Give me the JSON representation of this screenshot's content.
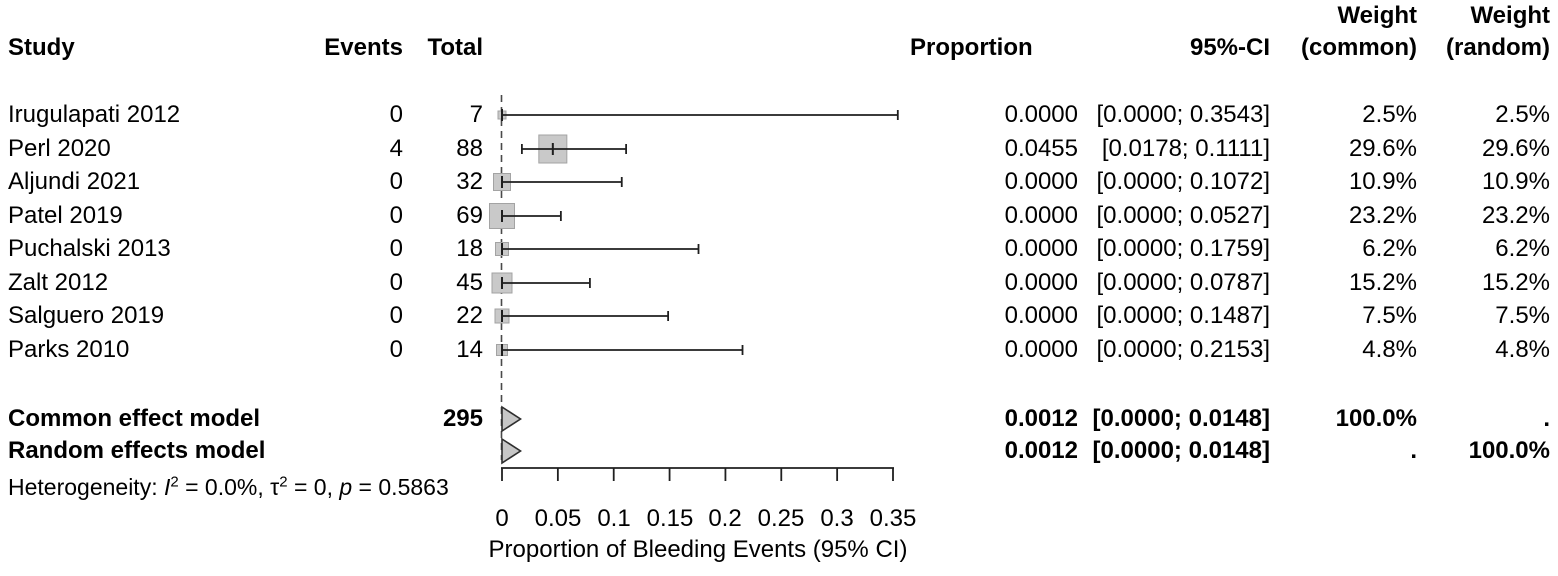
{
  "header": {
    "study": "Study",
    "events": "Events",
    "total": "Total",
    "proportion": "Proportion",
    "ci": "95%-CI",
    "weight": "Weight",
    "weight_common_sub": "(common)",
    "weight_random_sub": "(random)"
  },
  "rows": [
    {
      "study": "Irugulapati 2012",
      "events": "0",
      "total": "7",
      "proportion": "0.0000",
      "ci": "[0.0000; 0.3543]",
      "weight_common": "2.5%",
      "weight_random": "2.5%"
    },
    {
      "study": "Perl 2020",
      "events": "4",
      "total": "88",
      "proportion": "0.0455",
      "ci": "[0.0178; 0.1111]",
      "weight_common": "29.6%",
      "weight_random": "29.6%"
    },
    {
      "study": "Aljundi 2021",
      "events": "0",
      "total": "32",
      "proportion": "0.0000",
      "ci": "[0.0000; 0.1072]",
      "weight_common": "10.9%",
      "weight_random": "10.9%"
    },
    {
      "study": "Patel 2019",
      "events": "0",
      "total": "69",
      "proportion": "0.0000",
      "ci": "[0.0000; 0.0527]",
      "weight_common": "23.2%",
      "weight_random": "23.2%"
    },
    {
      "study": "Puchalski 2013",
      "events": "0",
      "total": "18",
      "proportion": "0.0000",
      "ci": "[0.0000; 0.1759]",
      "weight_common": "6.2%",
      "weight_random": "6.2%"
    },
    {
      "study": "Zalt 2012",
      "events": "0",
      "total": "45",
      "proportion": "0.0000",
      "ci": "[0.0000; 0.0787]",
      "weight_common": "15.2%",
      "weight_random": "15.2%"
    },
    {
      "study": "Salguero 2019",
      "events": "0",
      "total": "22",
      "proportion": "0.0000",
      "ci": "[0.0000; 0.1487]",
      "weight_common": "7.5%",
      "weight_random": "7.5%"
    },
    {
      "study": "Parks 2010",
      "events": "0",
      "total": "14",
      "proportion": "0.0000",
      "ci": "[0.0000; 0.2153]",
      "weight_common": "4.8%",
      "weight_random": "4.8%"
    }
  ],
  "pooled_rows": [
    {
      "label": "Common effect model",
      "total": "295",
      "proportion": "0.0012",
      "ci": "[0.0000; 0.0148]",
      "weight_common": "100.0%",
      "weight_random": "."
    },
    {
      "label": "Random effects model",
      "total": "",
      "proportion": "0.0012",
      "ci": "[0.0000; 0.0148]",
      "weight_common": ".",
      "weight_random": "100.0%"
    }
  ],
  "heterogeneity": {
    "prefix": "Heterogeneity: ",
    "i": "I",
    "sup2": "2",
    "seg1": " = 0.0%, ",
    "tau": "τ",
    "seg2": " = 0, ",
    "p": "p",
    "seg3": " = 0.5863"
  },
  "axis": {
    "ticks": [
      "0",
      "0.05",
      "0.1",
      "0.15",
      "0.2",
      "0.25",
      "0.3",
      "0.35"
    ],
    "label": "Proportion of Bleeding Events (95% CI)"
  },
  "chart_data": {
    "type": "scatter",
    "subtype": "forest_plot",
    "title": "",
    "xlabel": "Proportion of Bleeding Events (95% CI)",
    "xlim": [
      0,
      0.35
    ],
    "x_ticks": [
      0,
      0.05,
      0.1,
      0.15,
      0.2,
      0.25,
      0.3,
      0.35
    ],
    "grid": false,
    "studies": [
      {
        "name": "Irugulapati 2012",
        "events": 0,
        "total": 7,
        "proportion": 0.0,
        "ci_lower": 0.0,
        "ci_upper": 0.3543,
        "weight_common_pct": 2.5,
        "weight_random_pct": 2.5
      },
      {
        "name": "Perl 2020",
        "events": 4,
        "total": 88,
        "proportion": 0.0455,
        "ci_lower": 0.0178,
        "ci_upper": 0.1111,
        "weight_common_pct": 29.6,
        "weight_random_pct": 29.6
      },
      {
        "name": "Aljundi 2021",
        "events": 0,
        "total": 32,
        "proportion": 0.0,
        "ci_lower": 0.0,
        "ci_upper": 0.1072,
        "weight_common_pct": 10.9,
        "weight_random_pct": 10.9
      },
      {
        "name": "Patel 2019",
        "events": 0,
        "total": 69,
        "proportion": 0.0,
        "ci_lower": 0.0,
        "ci_upper": 0.0527,
        "weight_common_pct": 23.2,
        "weight_random_pct": 23.2
      },
      {
        "name": "Puchalski 2013",
        "events": 0,
        "total": 18,
        "proportion": 0.0,
        "ci_lower": 0.0,
        "ci_upper": 0.1759,
        "weight_common_pct": 6.2,
        "weight_random_pct": 6.2
      },
      {
        "name": "Zalt 2012",
        "events": 0,
        "total": 45,
        "proportion": 0.0,
        "ci_lower": 0.0,
        "ci_upper": 0.0787,
        "weight_common_pct": 15.2,
        "weight_random_pct": 15.2
      },
      {
        "name": "Salguero 2019",
        "events": 0,
        "total": 22,
        "proportion": 0.0,
        "ci_lower": 0.0,
        "ci_upper": 0.1487,
        "weight_common_pct": 7.5,
        "weight_random_pct": 7.5
      },
      {
        "name": "Parks 2010",
        "events": 0,
        "total": 14,
        "proportion": 0.0,
        "ci_lower": 0.0,
        "ci_upper": 0.2153,
        "weight_common_pct": 4.8,
        "weight_random_pct": 4.8
      }
    ],
    "pooled": [
      {
        "model": "Common effect model",
        "total": 295,
        "estimate": 0.0012,
        "ci": [
          0.0,
          0.0148
        ],
        "weight_common_pct": 100.0
      },
      {
        "model": "Random effects model",
        "estimate": 0.0012,
        "ci": [
          0.0,
          0.0148
        ],
        "weight_random_pct": 100.0
      }
    ],
    "heterogeneity": {
      "I2_pct": 0.0,
      "tau2": 0,
      "p": 0.5863
    },
    "marker_color": "#c9c9c9",
    "line_color": "#1f1f1f"
  }
}
